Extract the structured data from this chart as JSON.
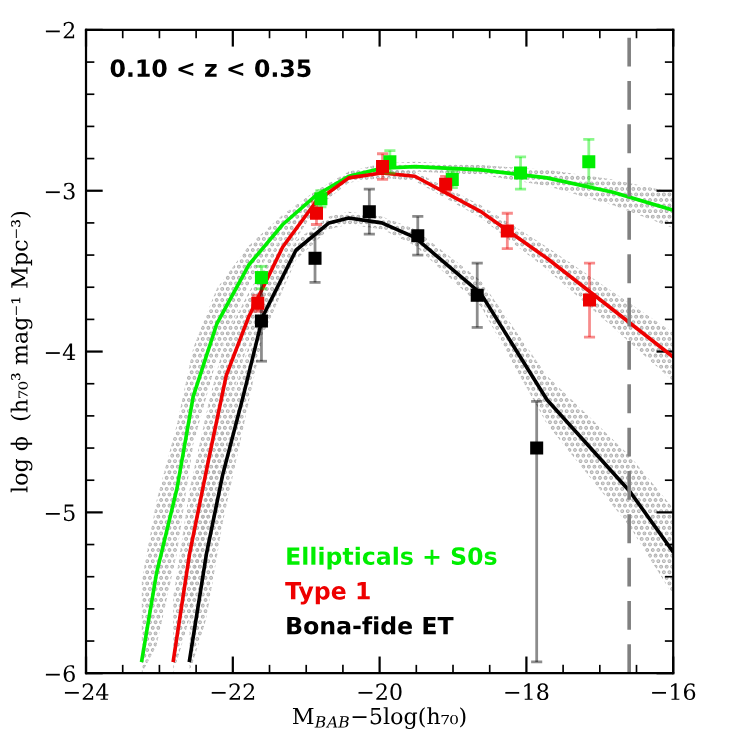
{
  "chart_data": {
    "type": "scatter",
    "xlabel": "M$_{B}$$_{AB}$−5log(h₇₀)",
    "ylabel": "log ϕ  (h₇₀³ mag⁻¹ Mpc⁻³)",
    "annotations": [
      "0.10 < z < 0.35"
    ],
    "xlim": [
      -24,
      -16
    ],
    "ylim": [
      -6,
      -2
    ],
    "xticks": [
      {
        "value": -24,
        "label": "−24"
      },
      {
        "value": -23.5,
        "label": null
      },
      {
        "value": -23,
        "label": null
      },
      {
        "value": -22.5,
        "label": null
      },
      {
        "value": -22,
        "label": "−22"
      },
      {
        "value": -21.5,
        "label": null
      },
      {
        "value": -21,
        "label": null
      },
      {
        "value": -20.5,
        "label": null
      },
      {
        "value": -20,
        "label": "−20"
      },
      {
        "value": -19.5,
        "label": null
      },
      {
        "value": -19,
        "label": null
      },
      {
        "value": -18.5,
        "label": null
      },
      {
        "value": -18,
        "label": "−18"
      },
      {
        "value": -17.5,
        "label": null
      },
      {
        "value": -17,
        "label": null
      },
      {
        "value": -16.5,
        "label": null
      },
      {
        "value": -16,
        "label": "−16"
      }
    ],
    "yticks": [
      {
        "value": -6,
        "label": "−6"
      },
      {
        "value": -5.8,
        "label": null
      },
      {
        "value": -5.6,
        "label": null
      },
      {
        "value": -5.4,
        "label": null
      },
      {
        "value": -5.2,
        "label": null
      },
      {
        "value": -5,
        "label": "−5"
      },
      {
        "value": -4.8,
        "label": null
      },
      {
        "value": -4.6,
        "label": null
      },
      {
        "value": -4.4,
        "label": null
      },
      {
        "value": -4.2,
        "label": null
      },
      {
        "value": -4,
        "label": "−4"
      },
      {
        "value": -3.8,
        "label": null
      },
      {
        "value": -3.6,
        "label": null
      },
      {
        "value": -3.4,
        "label": null
      },
      {
        "value": -3.2,
        "label": null
      },
      {
        "value": -3,
        "label": "−3"
      },
      {
        "value": -2.8,
        "label": null
      },
      {
        "value": -2.6,
        "label": null
      },
      {
        "value": -2.4,
        "label": null
      },
      {
        "value": -2.2,
        "label": null
      },
      {
        "value": -2,
        "label": "−2"
      }
    ],
    "grid": false,
    "legend": "bottom",
    "marker": "square",
    "ref_lines": [
      {
        "axis": "x",
        "value": -16.6,
        "color": "#808080",
        "line_style": "dashed"
      }
    ],
    "series": [
      {
        "type": "line",
        "marker": "none",
        "color": "#00ee00",
        "x": [
          -23.24,
          -23.04,
          -22.76,
          -22.54,
          -22.22,
          -21.78,
          -21.32,
          -20.87,
          -20.42,
          -19.97,
          -19.52,
          -18.62,
          -17.72,
          -16.82,
          -16.01
        ],
        "values": [
          -5.92,
          -5.38,
          -4.85,
          -4.28,
          -3.83,
          -3.46,
          -3.21,
          -3.03,
          -2.91,
          -2.86,
          -2.85,
          -2.87,
          -2.92,
          -3.01,
          -3.12
        ],
        "lower": [
          -6.0,
          -5.83,
          -5.25,
          -4.58,
          -4.05,
          -3.58,
          -3.27,
          -3.06,
          -2.94,
          -2.89,
          -2.88,
          -2.9,
          -2.97,
          -3.09,
          -3.23
        ],
        "upper": [
          -5.42,
          -4.93,
          -4.45,
          -3.98,
          -3.61,
          -3.34,
          -3.15,
          -3.0,
          -2.88,
          -2.83,
          -2.82,
          -2.84,
          -2.87,
          -2.93,
          -3.01
        ]
      },
      {
        "type": "line",
        "marker": "none",
        "color": "#ee0000",
        "x": [
          -22.81,
          -22.59,
          -22.32,
          -22.09,
          -21.78,
          -21.32,
          -20.87,
          -20.42,
          -19.97,
          -19.52,
          -18.62,
          -17.72,
          -16.82,
          -16.01
        ],
        "values": [
          -5.92,
          -5.26,
          -4.65,
          -4.15,
          -3.78,
          -3.35,
          -3.07,
          -2.92,
          -2.89,
          -2.91,
          -3.13,
          -3.42,
          -3.74,
          -4.03
        ],
        "lower": [
          -6.0,
          -5.66,
          -5.0,
          -4.4,
          -3.93,
          -3.43,
          -3.11,
          -2.95,
          -2.92,
          -2.94,
          -3.17,
          -3.49,
          -3.85,
          -4.18
        ],
        "upper": [
          -5.52,
          -4.86,
          -4.3,
          -3.9,
          -3.63,
          -3.27,
          -3.03,
          -2.89,
          -2.86,
          -2.88,
          -3.09,
          -3.35,
          -3.63,
          -3.88
        ]
      },
      {
        "type": "line",
        "marker": "none",
        "color": "#000000",
        "x": [
          -22.59,
          -22.36,
          -22.14,
          -21.86,
          -21.59,
          -21.14,
          -20.69,
          -20.42,
          -19.97,
          -19.52,
          -18.62,
          -17.72,
          -16.59,
          -16.01
        ],
        "values": [
          -5.92,
          -5.26,
          -4.77,
          -4.28,
          -3.78,
          -3.37,
          -3.2,
          -3.17,
          -3.2,
          -3.29,
          -3.64,
          -4.3,
          -4.87,
          -5.24
        ],
        "lower": [
          -6.0,
          -5.66,
          -5.07,
          -4.48,
          -3.9,
          -3.43,
          -3.24,
          -3.21,
          -3.24,
          -3.34,
          -3.72,
          -4.45,
          -5.09,
          -5.51
        ],
        "upper": [
          -5.52,
          -4.86,
          -4.47,
          -4.08,
          -3.66,
          -3.31,
          -3.16,
          -3.13,
          -3.16,
          -3.24,
          -3.56,
          -4.15,
          -4.65,
          -4.97
        ]
      },
      {
        "name": "Ellipticals + S0s",
        "color": "#00ee00",
        "x": [
          -21.61,
          -20.8,
          -19.86,
          -19.01,
          -18.08,
          -17.15
        ],
        "values": [
          -3.54,
          -3.05,
          -2.82,
          -2.93,
          -2.89,
          -2.82
        ],
        "errors": [
          0.07,
          0.05,
          0.07,
          0.05,
          0.1,
          0.14
        ]
      },
      {
        "name": "Type 1",
        "color": "#ee0000",
        "x": [
          -21.66,
          -20.86,
          -19.96,
          -19.1,
          -18.26,
          -17.14
        ],
        "values": [
          -3.7,
          -3.14,
          -2.85,
          -2.96,
          -3.25,
          -3.68
        ],
        "errors": [
          0.05,
          0.07,
          0.08,
          0.05,
          0.11,
          0.23
        ]
      },
      {
        "name": "Bona-fide ET",
        "color": "#000000",
        "x": [
          -21.61,
          -20.88,
          -20.14,
          -19.48,
          -18.67,
          -17.86
        ],
        "values": [
          -3.81,
          -3.42,
          -3.13,
          -3.28,
          -3.65,
          -4.6
        ],
        "errors": [
          0.25,
          0.15,
          0.14,
          0.12,
          0.2,
          [
            -5.93,
            -4.31
          ]
        ]
      }
    ]
  }
}
